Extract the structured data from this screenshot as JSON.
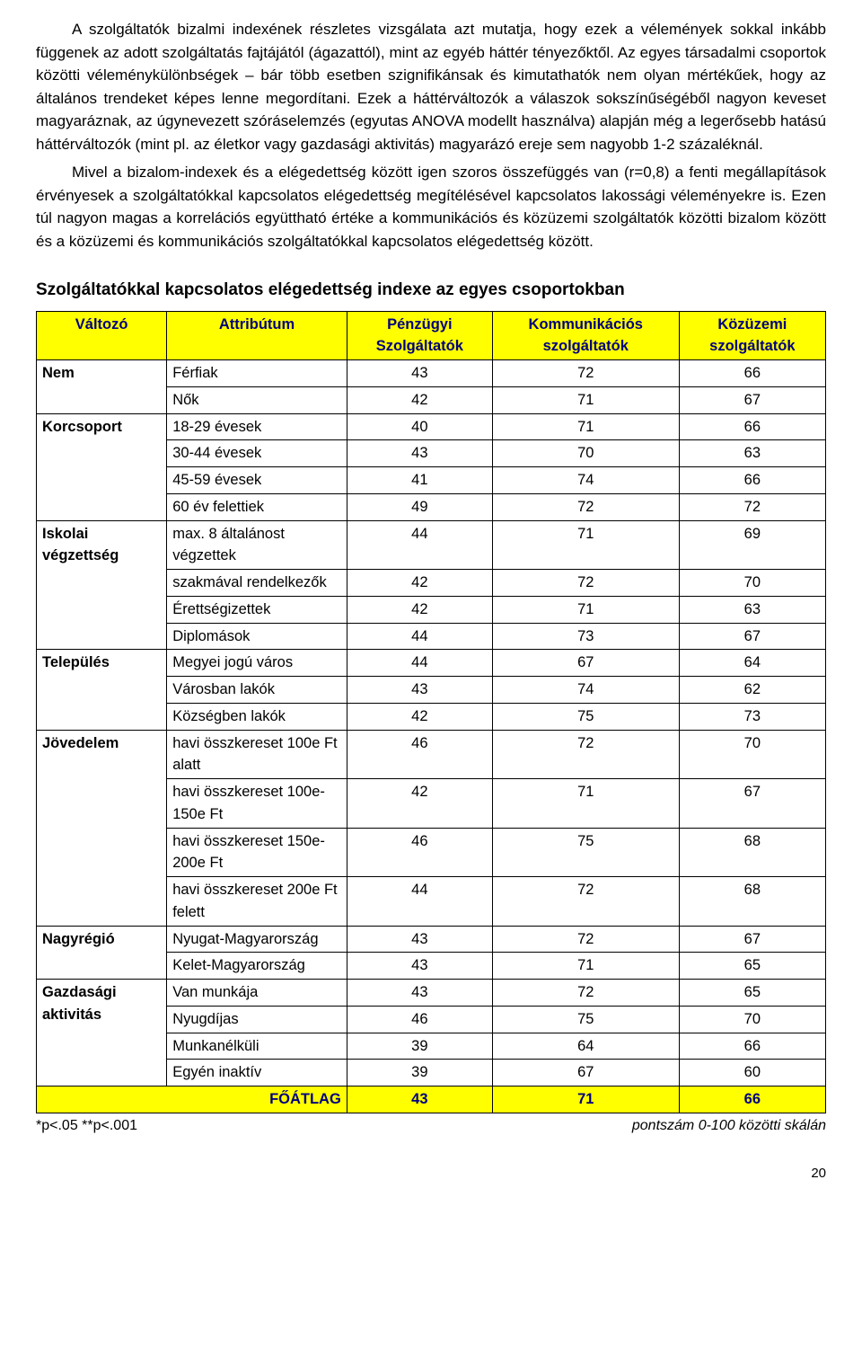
{
  "paragraphs": [
    "A szolgáltatók bizalmi indexének részletes vizsgálata azt mutatja, hogy ezek a vélemények sokkal inkább függenek az adott szolgáltatás fajtájától (ágazattól), mint az egyéb háttér tényezőktől. Az egyes társadalmi csoportok közötti véleménykülönbségek – bár több esetben szignifikánsak és kimutathatók nem olyan mértékűek, hogy az általános trendeket képes lenne megordítani. Ezek a háttérváltozók a válaszok sokszínűségéből nagyon keveset magyaráznak, az úgynevezett szóráselemzés (egyutas ANOVA modellt használva) alapján még a legerősebb hatású háttérváltozók (mint pl. az életkor vagy gazdasági aktivitás) magyarázó ereje sem nagyobb 1-2 százaléknál.",
    "Mivel a bizalom-indexek és a elégedettség között igen szoros összefüggés van (r=0,8) a fenti megállapítások érvényesek a szolgáltatókkal kapcsolatos elégedettség megítélésével kapcsolatos lakossági véleményekre is. Ezen túl nagyon magas a korrelációs együttható értéke a kommunikációs és közüzemi szolgáltatók közötti bizalom között és a közüzemi és kommunikációs szolgáltatókkal kapcsolatos elégedettség között."
  ],
  "section_title": "Szolgáltatókkal kapcsolatos elégedettség indexe az egyes csoportokban",
  "table": {
    "headers": [
      "Változó",
      "Attribútum",
      "Pénzügyi Szolgáltatók",
      "Kommunikációs szolgáltatók",
      "Közüzemi szolgáltatók"
    ],
    "groups": [
      {
        "variable": "Nem",
        "rows": [
          {
            "attr": "Férfiak",
            "vals": [
              "43",
              "72",
              "66"
            ]
          },
          {
            "attr": "Nők",
            "vals": [
              "42",
              "71",
              "67"
            ]
          }
        ]
      },
      {
        "variable": "Korcsoport",
        "rows": [
          {
            "attr": "18-29 évesek",
            "vals": [
              "40",
              "71",
              "66"
            ]
          },
          {
            "attr": "30-44 évesek",
            "vals": [
              "43",
              "70",
              "63"
            ]
          },
          {
            "attr": "45-59 évesek",
            "vals": [
              "41",
              "74",
              "66"
            ]
          },
          {
            "attr": "60 év felettiek",
            "vals": [
              "49",
              "72",
              "72"
            ]
          }
        ]
      },
      {
        "variable": "Iskolai végzettség",
        "rows": [
          {
            "attr": "max. 8 általánost végzettek",
            "vals": [
              "44",
              "71",
              "69"
            ]
          },
          {
            "attr": "szakmával rendelkezők",
            "vals": [
              "42",
              "72",
              "70"
            ]
          },
          {
            "attr": "Érettségizettek",
            "vals": [
              "42",
              "71",
              "63"
            ]
          },
          {
            "attr": "Diplomások",
            "vals": [
              "44",
              "73",
              "67"
            ]
          }
        ]
      },
      {
        "variable": "Település",
        "rows": [
          {
            "attr": "Megyei jogú város",
            "vals": [
              "44",
              "67",
              "64"
            ]
          },
          {
            "attr": "Városban lakók",
            "vals": [
              "43",
              "74",
              "62"
            ]
          },
          {
            "attr": "Községben lakók",
            "vals": [
              "42",
              "75",
              "73"
            ]
          }
        ]
      },
      {
        "variable": "Jövedelem",
        "rows": [
          {
            "attr": "havi összkereset 100e Ft alatt",
            "vals": [
              "46",
              "72",
              "70"
            ]
          },
          {
            "attr": "havi összkereset 100e-150e Ft",
            "vals": [
              "42",
              "71",
              "67"
            ]
          },
          {
            "attr": "havi összkereset 150e-200e Ft",
            "vals": [
              "46",
              "75",
              "68"
            ]
          },
          {
            "attr": "havi összkereset 200e Ft felett",
            "vals": [
              "44",
              "72",
              "68"
            ]
          }
        ]
      },
      {
        "variable": "Nagyrégió",
        "rows": [
          {
            "attr": "Nyugat-Magyarország",
            "vals": [
              "43",
              "72",
              "67"
            ]
          },
          {
            "attr": "Kelet-Magyarország",
            "vals": [
              "43",
              "71",
              "65"
            ]
          }
        ]
      },
      {
        "variable": "Gazdasági aktivitás",
        "rows": [
          {
            "attr": "Van munkája",
            "vals": [
              "43",
              "72",
              "65"
            ]
          },
          {
            "attr": "Nyugdíjas",
            "vals": [
              "46",
              "75",
              "70"
            ]
          },
          {
            "attr": "Munkanélküli",
            "vals": [
              "39",
              "64",
              "66"
            ]
          },
          {
            "attr": "Egyén inaktív",
            "vals": [
              "39",
              "67",
              "60"
            ]
          }
        ]
      }
    ],
    "footer": {
      "label": "FŐÁTLAG",
      "vals": [
        "43",
        "71",
        "66"
      ]
    }
  },
  "footnote_left": "*p<.05  **p<.001",
  "footnote_right": "pontszám 0-100 közötti skálán",
  "page_number": "20",
  "colors": {
    "header_bg": "#ffff00",
    "header_fg": "#000080"
  }
}
